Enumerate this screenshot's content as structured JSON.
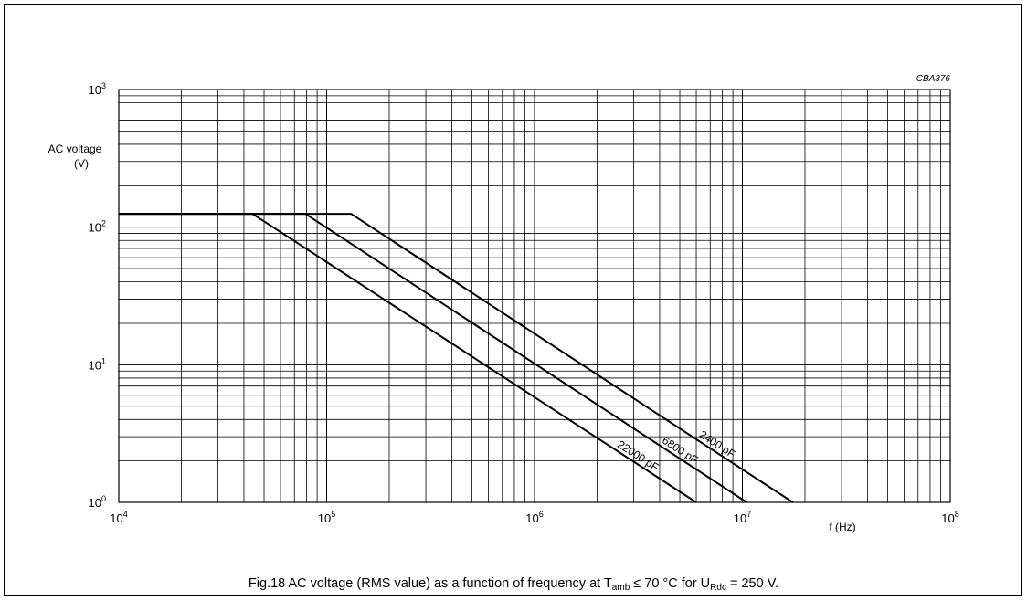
{
  "chart_data": {
    "type": "line",
    "code": "CBA376",
    "xlabel": "f (Hz)",
    "ylabel_lines": [
      "AC voltage",
      "(V)"
    ],
    "x_scale": "log",
    "y_scale": "log",
    "xlim": [
      10000,
      100000000
    ],
    "ylim": [
      1,
      1000
    ],
    "x_ticks": [
      {
        "base": "10",
        "exp": "4",
        "value": 10000
      },
      {
        "base": "10",
        "exp": "5",
        "value": 100000
      },
      {
        "base": "10",
        "exp": "6",
        "value": 1000000
      },
      {
        "base": "10",
        "exp": "7",
        "value": 10000000
      },
      {
        "base": "10",
        "exp": "8",
        "value": 100000000
      }
    ],
    "y_ticks": [
      {
        "base": "10",
        "exp": "0",
        "value": 1
      },
      {
        "base": "10",
        "exp": "1",
        "value": 10
      },
      {
        "base": "10",
        "exp": "2",
        "value": 100
      },
      {
        "base": "10",
        "exp": "3",
        "value": 1000
      }
    ],
    "grid": true,
    "series": [
      {
        "name": "2400 pF",
        "points": [
          [
            10000,
            125
          ],
          [
            131000,
            125
          ],
          [
            17500000,
            1
          ]
        ]
      },
      {
        "name": "6800 pF",
        "points": [
          [
            10000,
            125
          ],
          [
            79000,
            125
          ],
          [
            10500000,
            1
          ]
        ]
      },
      {
        "name": "22000 pF",
        "points": [
          [
            10000,
            125
          ],
          [
            44000,
            125
          ],
          [
            6000000,
            1
          ]
        ]
      }
    ]
  },
  "caption": {
    "prefix": "Fig.18  AC voltage (RMS value) as a function of frequency at T",
    "sub1": "amb",
    "middle": " ≤ 70 °C for U",
    "sub2": "Rdc",
    "suffix": " = 250 V."
  }
}
